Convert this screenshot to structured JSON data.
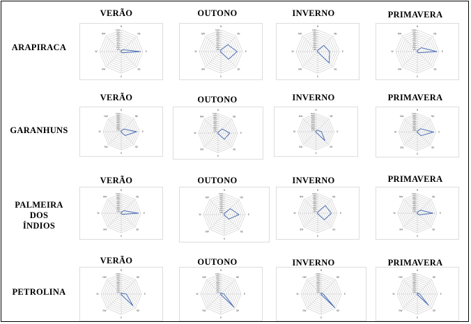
{
  "columns": [
    "VERÃO",
    "OUTONO",
    "INVERNO",
    "PRIMAVERA"
  ],
  "rows": [
    {
      "label_lines": [
        "ARAPIRACA"
      ]
    },
    {
      "label_lines": [
        "GARANHUNS"
      ]
    },
    {
      "label_lines": [
        "PALMEIRA",
        "DOS",
        "ÍNDIOS"
      ]
    },
    {
      "label_lines": [
        "PETROLINA"
      ]
    }
  ],
  "colors": {
    "series": "#4a6fb5",
    "grid": "#c8c8c8",
    "text": "#000000"
  },
  "chart_data": {
    "type": "radar",
    "directions": [
      "N",
      "NE",
      "E",
      "SE",
      "S",
      "SW",
      "W",
      "NW"
    ],
    "rlim": [
      0,
      100
    ],
    "grid_levels": [
      10,
      20,
      30,
      40,
      50,
      60,
      70,
      80,
      90,
      100
    ],
    "units": "%",
    "panels": [
      {
        "row": "ARAPIRACA",
        "season": "VERÃO",
        "values": [
          5,
          12,
          88,
          8,
          2,
          1,
          2,
          2
        ]
      },
      {
        "row": "ARAPIRACA",
        "season": "OUTONO",
        "values": [
          8,
          45,
          75,
          50,
          3,
          1,
          1,
          2
        ]
      },
      {
        "row": "ARAPIRACA",
        "season": "INVERNO",
        "values": [
          6,
          40,
          55,
          75,
          2,
          1,
          1,
          2
        ]
      },
      {
        "row": "ARAPIRACA",
        "season": "PRIMAVERA",
        "values": [
          5,
          25,
          90,
          8,
          2,
          1,
          1,
          2
        ]
      },
      {
        "row": "GARANHUNS",
        "season": "VERÃO",
        "values": [
          5,
          20,
          85,
          30,
          3,
          1,
          1,
          2
        ]
      },
      {
        "row": "GARANHUNS",
        "season": "OUTONO",
        "values": [
          5,
          30,
          60,
          45,
          3,
          1,
          1,
          2
        ]
      },
      {
        "row": "GARANHUNS",
        "season": "INVERNO",
        "values": [
          5,
          12,
          30,
          70,
          3,
          1,
          1,
          2
        ]
      },
      {
        "row": "GARANHUNS",
        "season": "PRIMAVERA",
        "values": [
          5,
          25,
          88,
          28,
          2,
          1,
          1,
          2
        ]
      },
      {
        "row": "PALMEIRA DOS ÍNDIOS",
        "season": "VERÃO",
        "values": [
          5,
          18,
          88,
          8,
          2,
          1,
          1,
          2
        ]
      },
      {
        "row": "PALMEIRA DOS ÍNDIOS",
        "season": "OUTONO",
        "values": [
          6,
          40,
          70,
          30,
          3,
          1,
          1,
          2
        ]
      },
      {
        "row": "PALMEIRA DOS ÍNDIOS",
        "season": "INVERNO",
        "values": [
          6,
          55,
          70,
          48,
          3,
          1,
          1,
          2
        ]
      },
      {
        "row": "PALMEIRA DOS ÍNDIOS",
        "season": "PRIMAVERA",
        "values": [
          5,
          22,
          80,
          12,
          2,
          1,
          1,
          2
        ]
      },
      {
        "row": "PETROLINA",
        "season": "VERÃO",
        "values": [
          5,
          5,
          25,
          82,
          3,
          1,
          1,
          2
        ]
      },
      {
        "row": "PETROLINA",
        "season": "OUTONO",
        "values": [
          5,
          5,
          15,
          92,
          3,
          1,
          1,
          2
        ]
      },
      {
        "row": "PETROLINA",
        "season": "INVERNO",
        "values": [
          5,
          5,
          10,
          95,
          3,
          1,
          1,
          2
        ]
      },
      {
        "row": "PETROLINA",
        "season": "PRIMAVERA",
        "values": [
          5,
          5,
          12,
          78,
          3,
          1,
          1,
          2
        ]
      }
    ]
  }
}
